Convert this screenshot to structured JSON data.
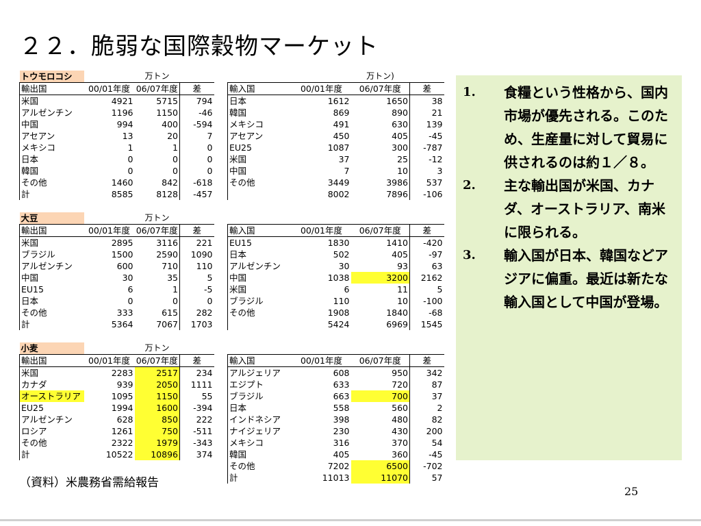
{
  "title": "２２．脆弱な国際穀物マーケット",
  "tables": [
    {
      "category": "トウモロコシ",
      "unit_left": "万トン",
      "unit_right": "万トン)",
      "headers_left": [
        "輸出国",
        "00/01年度",
        "06/07年度",
        "差"
      ],
      "headers_right": [
        "輸入国",
        "00/01年度",
        "06/07年度",
        "差"
      ],
      "rows": [
        {
          "l": [
            "米国",
            "4921",
            "5715",
            "794"
          ],
          "r": [
            "日本",
            "1612",
            "1650",
            "38"
          ]
        },
        {
          "l": [
            "アルゼンチン",
            "1196",
            "1150",
            "-46"
          ],
          "r": [
            "韓国",
            "869",
            "890",
            "21"
          ]
        },
        {
          "l": [
            "中国",
            "994",
            "400",
            "-594"
          ],
          "r": [
            "メキシコ",
            "491",
            "630",
            "139"
          ]
        },
        {
          "l": [
            "アセアン",
            "13",
            "20",
            "7"
          ],
          "r": [
            "アセアン",
            "450",
            "405",
            "-45"
          ]
        },
        {
          "l": [
            "メキシコ",
            "1",
            "1",
            "0"
          ],
          "r": [
            "EU25",
            "1087",
            "300",
            "-787"
          ]
        },
        {
          "l": [
            "日本",
            "0",
            "0",
            "0"
          ],
          "r": [
            "米国",
            "37",
            "25",
            "-12"
          ]
        },
        {
          "l": [
            "韓国",
            "0",
            "0",
            "0"
          ],
          "r": [
            "中国",
            "7",
            "10",
            "3"
          ]
        },
        {
          "l": [
            "その他",
            "1460",
            "842",
            "-618"
          ],
          "r": [
            "その他",
            "3449",
            "3986",
            "537"
          ]
        },
        {
          "l": [
            "計",
            "8585",
            "8128",
            "-457"
          ],
          "r": [
            "",
            "8002",
            "7896",
            "-106"
          ]
        }
      ]
    },
    {
      "category": "大豆",
      "unit_left": "万トン",
      "unit_right": "",
      "headers_left": [
        "輸出国",
        "00/01年度",
        "06/07年度",
        "差"
      ],
      "headers_right": [
        "輸入国",
        "00/01年度",
        "06/07年度",
        "差"
      ],
      "rows": [
        {
          "l": [
            "米国",
            "2895",
            "3116",
            "221"
          ],
          "r": [
            "EU15",
            "1830",
            "1410",
            "-420"
          ]
        },
        {
          "l": [
            "ブラジル",
            "1500",
            "2590",
            "1090"
          ],
          "r": [
            "日本",
            "502",
            "405",
            "-97"
          ]
        },
        {
          "l": [
            "アルゼンチン",
            "600",
            "710",
            "110"
          ],
          "r": [
            "アルゼンチン",
            "30",
            "93",
            "63"
          ]
        },
        {
          "l": [
            "中国",
            "30",
            "35",
            "5"
          ],
          "r": [
            "中国",
            "1038",
            "3200",
            "2162"
          ]
        },
        {
          "l": [
            "EU15",
            "6",
            "1",
            "-5"
          ],
          "r": [
            "米国",
            "6",
            "11",
            "5"
          ]
        },
        {
          "l": [
            "日本",
            "0",
            "0",
            "0"
          ],
          "r": [
            "ブラジル",
            "110",
            "10",
            "-100"
          ]
        },
        {
          "l": [
            "その他",
            "333",
            "615",
            "282"
          ],
          "r": [
            "その他",
            "1908",
            "1840",
            "-68"
          ]
        },
        {
          "l": [
            "計",
            "5364",
            "7067",
            "1703"
          ],
          "r": [
            "",
            "5424",
            "6969",
            "1545"
          ]
        }
      ]
    },
    {
      "category": "小麦",
      "unit_left": "万トン",
      "unit_right": "",
      "headers_left": [
        "輸出国",
        "00/01年度",
        "06/07年度",
        "差"
      ],
      "headers_right": [
        "輸入国",
        "00/01年度",
        "06/07年度",
        "差"
      ],
      "rows": [
        {
          "l": [
            "米国",
            "2283",
            "2517",
            "234"
          ],
          "r": [
            "アルジェリア",
            "608",
            "950",
            "342"
          ]
        },
        {
          "l": [
            "カナダ",
            "939",
            "2050",
            "1111"
          ],
          "r": [
            "エジプト",
            "633",
            "720",
            "87"
          ]
        },
        {
          "l": [
            "オーストラリア",
            "1095",
            "1150",
            "55"
          ],
          "r": [
            "ブラジル",
            "663",
            "700",
            "37"
          ]
        },
        {
          "l": [
            "EU25",
            "1994",
            "1600",
            "-394"
          ],
          "r": [
            "日本",
            "558",
            "560",
            "2"
          ]
        },
        {
          "l": [
            "アルゼンチン",
            "628",
            "850",
            "222"
          ],
          "r": [
            "インドネシア",
            "398",
            "480",
            "82"
          ]
        },
        {
          "l": [
            "ロシア",
            "1261",
            "750",
            "-511"
          ],
          "r": [
            "ナイジェリア",
            "230",
            "430",
            "200"
          ]
        },
        {
          "l": [
            "その他",
            "2322",
            "1979",
            "-343"
          ],
          "r": [
            "メキシコ",
            "316",
            "370",
            "54"
          ]
        },
        {
          "l": [
            "計",
            "10522",
            "10896",
            "374"
          ],
          "r": [
            "韓国",
            "405",
            "360",
            "-45"
          ]
        },
        {
          "l": [
            "",
            "",
            "",
            ""
          ],
          "r": [
            "その他",
            "7202",
            "6500",
            "-702"
          ]
        },
        {
          "l": [
            "",
            "",
            "",
            ""
          ],
          "r": [
            "計",
            "11013",
            "11070",
            "57"
          ]
        }
      ]
    }
  ],
  "notes": [
    {
      "num": "1.",
      "text": "食糧という性格から、国内市場が優先される。このため、生産量に対して貿易に供されるのは約１／８。"
    },
    {
      "num": "2.",
      "text": "主な輸出国が米国、カナダ、オーストラリア、南米に限られる。"
    },
    {
      "num": "3.",
      "text": "輸入国が日本、韓国などアジアに偏重。最近は新たな輸入国として中国が登場。"
    }
  ],
  "source": "（資料）米農務省需給報告",
  "page_number": "25",
  "colors": {
    "highlight": "#ffff33",
    "category_bg": "#fcd5b4",
    "notes_bg": "#e6f2cc"
  },
  "highlights": {
    "0": [],
    "1": [
      {
        "row": 3,
        "side": "r",
        "col": 2
      }
    ],
    "2": [
      {
        "row": 0,
        "side": "l",
        "col": 2
      },
      {
        "row": 1,
        "side": "l",
        "col": 2
      },
      {
        "row": 2,
        "side": "l",
        "col": 0
      },
      {
        "row": 2,
        "side": "l",
        "col": 2
      },
      {
        "row": 3,
        "side": "l",
        "col": 2
      },
      {
        "row": 4,
        "side": "l",
        "col": 2
      },
      {
        "row": 5,
        "side": "l",
        "col": 2
      },
      {
        "row": 6,
        "side": "l",
        "col": 2
      },
      {
        "row": 7,
        "side": "l",
        "col": 2
      },
      {
        "row": 2,
        "side": "r",
        "col": 2
      },
      {
        "row": 8,
        "side": "r",
        "col": 2
      },
      {
        "row": 9,
        "side": "r",
        "col": 2
      }
    ]
  }
}
